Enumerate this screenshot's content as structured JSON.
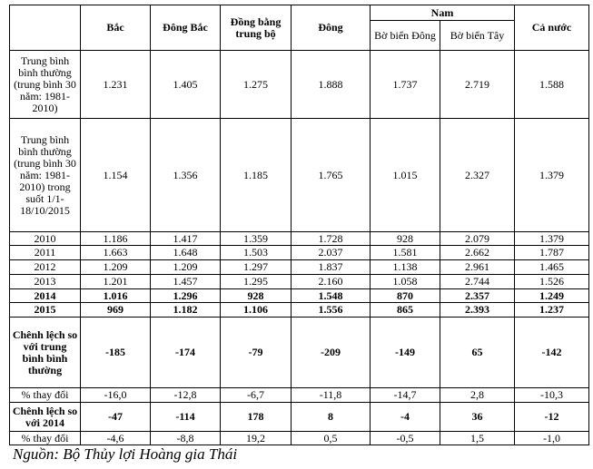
{
  "table": {
    "header": {
      "columns": [
        "Bắc",
        "Đông Bắc",
        "Đồng bằng trung bộ",
        "Đông",
        "Nam",
        "Cả nước"
      ],
      "sub_columns": [
        "Bờ biển Đông",
        "Bờ biển Tây"
      ]
    },
    "rows": [
      [
        "Trung bình bình thường (trung bình 30 năm: 1981-2010)",
        "1.231",
        "1.405",
        "1.275",
        "1.888",
        "1.737",
        "2.719",
        "1.588"
      ],
      [
        "Trung bình bình thường (trung bình 30 năm: 1981-2010) trong suốt 1/1-18/10/2015",
        "1.154",
        "1.356",
        "1.185",
        "1.765",
        "1.015",
        "2.327",
        "1.379"
      ],
      [
        "2010",
        "1.186",
        "1.417",
        "1.359",
        "1.728",
        "928",
        "2.079",
        "1.379"
      ],
      [
        "2011",
        "1.663",
        "1.648",
        "1.503",
        "2.037",
        "1.581",
        "2.662",
        "1.787"
      ],
      [
        "2012",
        "1.209",
        "1.209",
        "1.297",
        "1.837",
        "1.138",
        "2.961",
        "1.465"
      ],
      [
        "2013",
        "1.201",
        "1.457",
        "1.295",
        "2.160",
        "1.058",
        "2.744",
        "1.526"
      ],
      [
        "2014",
        "1.016",
        "1.296",
        "928",
        "1.548",
        "870",
        "2.357",
        "1.249"
      ],
      [
        "2015",
        "969",
        "1.182",
        "1.106",
        "1.556",
        "865",
        "2.393",
        "1.237"
      ],
      [
        "Chênh lệch so với trung bình bình thường",
        "-185",
        "-174",
        "-79",
        "-209",
        "-149",
        "65",
        "-142"
      ],
      [
        "% thay đổi",
        "-16,0",
        "-12,8",
        "-6,7",
        "-11,8",
        "-14,7",
        "2,8",
        "-10,3"
      ],
      [
        "Chênh lệch so với 2014",
        "-47",
        "-114",
        "178",
        "8",
        "-4",
        "36",
        "-12"
      ],
      [
        "% thay đổi",
        "-4,6",
        "-8,8",
        "19,2",
        "0,5",
        "-0,5",
        "1,5",
        "-1,0"
      ]
    ]
  },
  "source": "Nguồn: Bộ Thủy lợi Hoàng gia Thái"
}
